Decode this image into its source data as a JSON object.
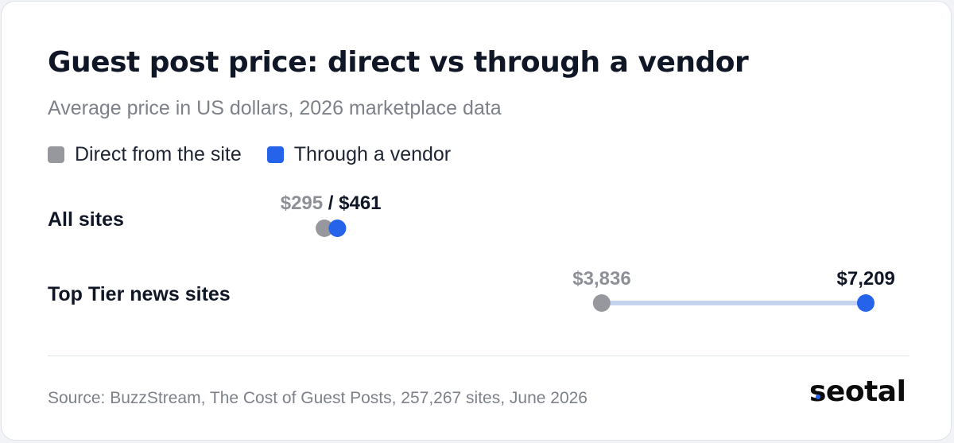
{
  "title": "Guest post price: direct vs through a vendor",
  "subtitle": "Average price in US dollars, 2026 marketplace data",
  "legend": {
    "direct": "Direct from the site",
    "vendor": "Through a vendor"
  },
  "colors": {
    "direct": "#96989e",
    "vendor": "#2563eb",
    "connector": "#c5d3ee"
  },
  "chart_data": {
    "type": "dumbbell",
    "title": "Guest post price: direct vs through a vendor",
    "subtitle": "Average price in US dollars, 2026 marketplace data",
    "legend_position": "top-left",
    "grid": false,
    "series": [
      {
        "name": "Direct from the site",
        "values": [
          295,
          3836
        ]
      },
      {
        "name": "Through a vendor",
        "values": [
          461,
          7209
        ]
      }
    ],
    "categories": [
      "All sites",
      "Top Tier news sites"
    ],
    "xlim": [
      0,
      7209
    ],
    "rows": [
      {
        "label": "All sites",
        "direct": 295,
        "vendor": 461,
        "direct_label": "$295",
        "separator": " / ",
        "vendor_label": "$461"
      },
      {
        "label": "Top Tier news sites",
        "direct": 3836,
        "vendor": 7209,
        "direct_label": "$3,836",
        "vendor_label": "$7,209"
      }
    ]
  },
  "source": "Source: BuzzStream, The Cost of Guest Posts, 257,267 sites, June 2026",
  "logo": "seotal"
}
